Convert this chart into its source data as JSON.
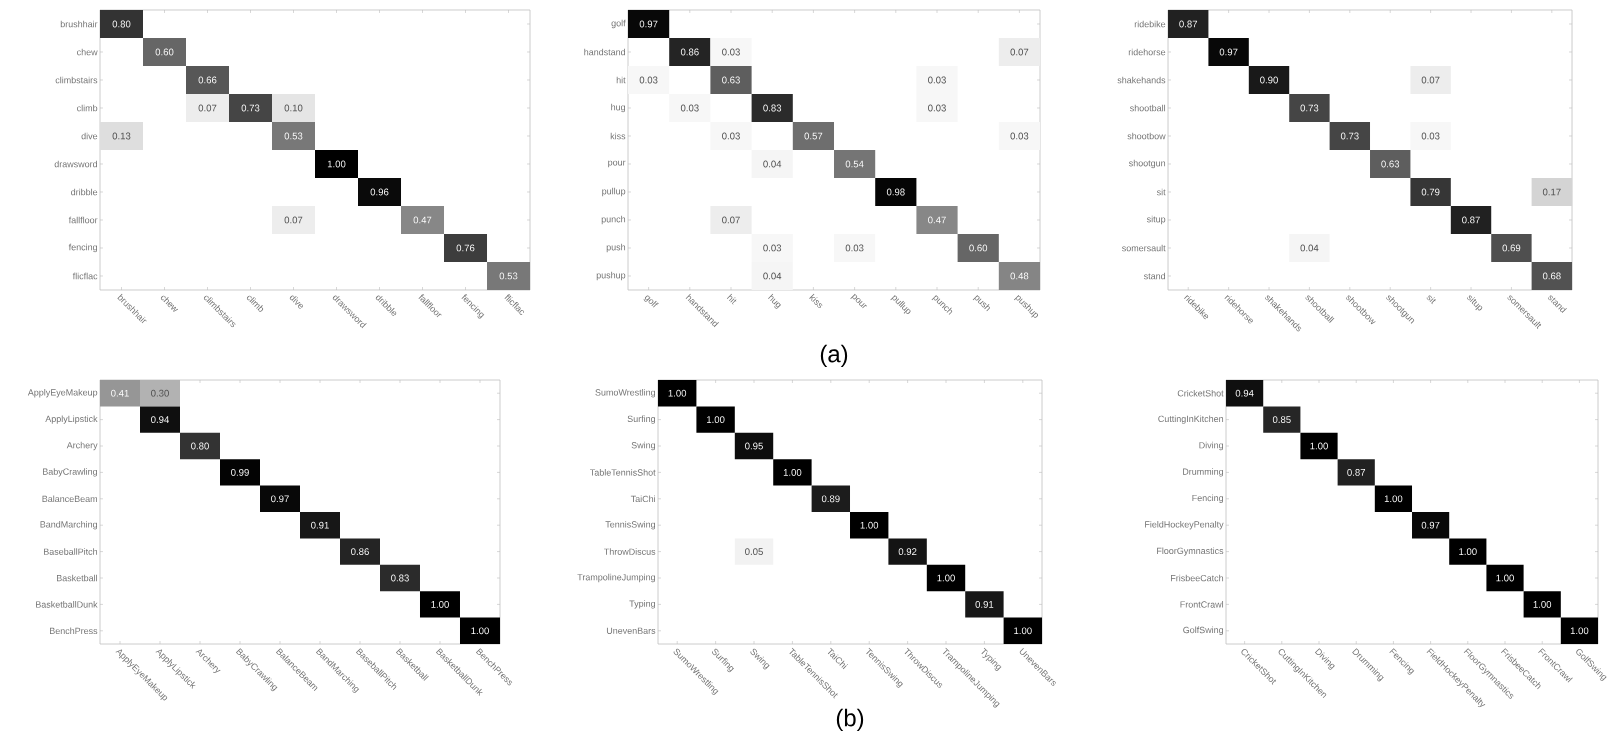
{
  "chart_data": [
    {
      "type": "heatmap",
      "categories": [
        "brushhair",
        "chew",
        "climbstairs",
        "climb",
        "dive",
        "drawsword",
        "dribble",
        "fallfloor",
        "fencing",
        "flicflac"
      ],
      "y_categories": [
        "brushhair",
        "chew",
        "climbstairs",
        "climb",
        "dive",
        "drawsword",
        "dribble",
        "fallfloor",
        "fencing",
        "flicflac"
      ],
      "cells": [
        [
          0.8,
          null,
          null,
          null,
          null,
          null,
          null,
          null,
          null,
          null
        ],
        [
          null,
          0.6,
          null,
          null,
          null,
          null,
          null,
          null,
          null,
          null
        ],
        [
          null,
          null,
          0.66,
          null,
          null,
          null,
          null,
          null,
          null,
          null
        ],
        [
          null,
          null,
          0.07,
          0.73,
          0.1,
          null,
          null,
          null,
          null,
          null
        ],
        [
          0.13,
          null,
          null,
          null,
          0.53,
          null,
          null,
          null,
          null,
          null
        ],
        [
          null,
          null,
          null,
          null,
          null,
          1.0,
          null,
          null,
          null,
          null
        ],
        [
          null,
          null,
          null,
          null,
          null,
          null,
          0.96,
          null,
          null,
          null
        ],
        [
          null,
          null,
          null,
          null,
          0.07,
          null,
          null,
          0.47,
          null,
          null
        ],
        [
          null,
          null,
          null,
          null,
          null,
          null,
          null,
          null,
          0.76,
          null
        ],
        [
          null,
          null,
          null,
          null,
          null,
          null,
          null,
          null,
          null,
          0.53
        ]
      ],
      "cell_labels": [
        [
          "0.80",
          null,
          null,
          null,
          null,
          null,
          null,
          null,
          null,
          null
        ],
        [
          null,
          "0.60",
          null,
          null,
          null,
          null,
          null,
          null,
          null,
          null
        ],
        [
          null,
          null,
          "0.66",
          null,
          null,
          null,
          null,
          null,
          null,
          null
        ],
        [
          null,
          null,
          "0.07",
          "0.73",
          "0.10",
          null,
          null,
          null,
          null,
          null
        ],
        [
          "0.13",
          null,
          null,
          null,
          "0.53",
          null,
          null,
          null,
          null,
          null
        ],
        [
          null,
          null,
          null,
          null,
          null,
          "1.00",
          null,
          null,
          null,
          null
        ],
        [
          null,
          null,
          null,
          null,
          null,
          null,
          "0.96",
          null,
          null,
          null
        ],
        [
          null,
          null,
          null,
          null,
          "0.07",
          null,
          null,
          "0.47",
          null,
          null
        ],
        [
          null,
          null,
          null,
          null,
          null,
          null,
          null,
          null,
          "0.76",
          null
        ],
        [
          null,
          null,
          null,
          null,
          null,
          null,
          null,
          null,
          null,
          "0.53"
        ]
      ]
    },
    {
      "type": "heatmap",
      "annotations": [
        "(a)"
      ],
      "categories": [
        "golf",
        "handstand",
        "hit",
        "hug",
        "kiss",
        "pour",
        "pullup",
        "punch",
        "push",
        "pushup"
      ],
      "y_categories": [
        "golf",
        "handstand",
        "hit",
        "hug",
        "kiss",
        "pour",
        "pullup",
        "punch",
        "push",
        "pushup"
      ],
      "cells": [
        [
          0.97,
          null,
          null,
          null,
          null,
          null,
          null,
          null,
          null,
          null
        ],
        [
          null,
          0.86,
          0.03,
          null,
          null,
          null,
          null,
          null,
          null,
          0.07
        ],
        [
          0.03,
          null,
          0.63,
          null,
          null,
          null,
          null,
          0.03,
          null,
          null
        ],
        [
          null,
          0.03,
          null,
          0.83,
          null,
          null,
          null,
          0.03,
          null,
          null
        ],
        [
          null,
          null,
          0.03,
          null,
          0.57,
          null,
          null,
          null,
          null,
          0.03
        ],
        [
          null,
          null,
          null,
          0.04,
          null,
          0.54,
          null,
          null,
          null,
          null
        ],
        [
          null,
          null,
          null,
          null,
          null,
          null,
          0.98,
          null,
          null,
          null
        ],
        [
          null,
          null,
          0.07,
          null,
          null,
          null,
          null,
          0.47,
          null,
          null
        ],
        [
          null,
          null,
          null,
          0.03,
          null,
          0.03,
          null,
          null,
          0.6,
          null
        ],
        [
          null,
          null,
          null,
          0.04,
          null,
          null,
          null,
          null,
          null,
          0.48
        ]
      ],
      "cell_labels": [
        [
          "0.97",
          null,
          null,
          null,
          null,
          null,
          null,
          null,
          null,
          null
        ],
        [
          null,
          "0.86",
          "0.03",
          null,
          null,
          null,
          null,
          null,
          null,
          "0.07"
        ],
        [
          "0.03",
          null,
          "0.63",
          null,
          null,
          null,
          null,
          "0.03",
          null,
          null
        ],
        [
          null,
          "0.03",
          null,
          "0.83",
          null,
          null,
          null,
          "0.03",
          null,
          null
        ],
        [
          null,
          null,
          "0.03",
          null,
          "0.57",
          null,
          null,
          null,
          null,
          "0.03"
        ],
        [
          null,
          null,
          null,
          "0.04",
          null,
          "0.54",
          null,
          null,
          null,
          null
        ],
        [
          null,
          null,
          null,
          null,
          null,
          null,
          "0.98",
          null,
          null,
          null
        ],
        [
          null,
          null,
          "0.07",
          null,
          null,
          null,
          null,
          "0.47",
          null,
          null
        ],
        [
          null,
          null,
          null,
          "0.03",
          null,
          "0.03",
          null,
          null,
          "0.60",
          null
        ],
        [
          null,
          null,
          null,
          "0.04",
          null,
          null,
          null,
          null,
          null,
          "0.48"
        ]
      ]
    },
    {
      "type": "heatmap",
      "categories": [
        "ridebike",
        "ridehorse",
        "shakehands",
        "shootball",
        "shootbow",
        "shootgun",
        "sit",
        "situp",
        "somersault",
        "stand"
      ],
      "y_categories": [
        "ridebike",
        "ridehorse",
        "shakehands",
        "shootball",
        "shootbow",
        "shootgun",
        "sit",
        "situp",
        "somersault",
        "stand"
      ],
      "cells": [
        [
          0.87,
          null,
          null,
          null,
          null,
          null,
          null,
          null,
          null,
          null
        ],
        [
          null,
          0.97,
          null,
          null,
          null,
          null,
          null,
          null,
          null,
          null
        ],
        [
          null,
          null,
          0.9,
          null,
          null,
          null,
          0.07,
          null,
          null,
          null
        ],
        [
          null,
          null,
          null,
          0.73,
          null,
          null,
          null,
          null,
          null,
          null
        ],
        [
          null,
          null,
          null,
          null,
          0.73,
          null,
          0.03,
          null,
          null,
          null
        ],
        [
          null,
          null,
          null,
          null,
          null,
          0.63,
          null,
          null,
          null,
          null
        ],
        [
          null,
          null,
          null,
          null,
          null,
          null,
          0.79,
          null,
          null,
          0.17
        ],
        [
          null,
          null,
          null,
          null,
          null,
          null,
          null,
          0.87,
          null,
          null
        ],
        [
          null,
          null,
          null,
          0.04,
          null,
          null,
          null,
          null,
          0.69,
          null
        ],
        [
          null,
          null,
          null,
          null,
          null,
          null,
          null,
          null,
          null,
          0.68
        ]
      ],
      "cell_labels": [
        [
          "0.87",
          null,
          null,
          null,
          null,
          null,
          null,
          null,
          null,
          null
        ],
        [
          null,
          "0.97",
          null,
          null,
          null,
          null,
          null,
          null,
          null,
          null
        ],
        [
          null,
          null,
          "0.90",
          null,
          null,
          null,
          "0.07",
          null,
          null,
          null
        ],
        [
          null,
          null,
          null,
          "0.73",
          null,
          null,
          null,
          null,
          null,
          null
        ],
        [
          null,
          null,
          null,
          null,
          "0.73",
          null,
          "0.03",
          null,
          null,
          null
        ],
        [
          null,
          null,
          null,
          null,
          null,
          "0.63",
          null,
          null,
          null,
          null
        ],
        [
          null,
          null,
          null,
          null,
          null,
          null,
          "0.79",
          null,
          null,
          "0.17"
        ],
        [
          null,
          null,
          null,
          null,
          null,
          null,
          null,
          "0.87",
          null,
          null
        ],
        [
          null,
          null,
          null,
          "0.04",
          null,
          null,
          null,
          null,
          "0.69",
          null
        ],
        [
          null,
          null,
          null,
          null,
          null,
          null,
          null,
          null,
          null,
          "0.68"
        ]
      ]
    },
    {
      "type": "heatmap",
      "categories": [
        "ApplyEyeMakeup",
        "ApplyLipstick",
        "Archery",
        "BabyCrawling",
        "BalanceBeam",
        "BandMarching",
        "BaseballPitch",
        "Basketball",
        "BasketballDunk",
        "BenchPress"
      ],
      "y_categories": [
        "ApplyEyeMakeup",
        "ApplyLipstick",
        "Archery",
        "BabyCrawling",
        "BalanceBeam",
        "BandMarching",
        "BaseballPitch",
        "Basketball",
        "BasketballDunk",
        "BenchPress"
      ],
      "cells": [
        [
          0.41,
          0.3,
          null,
          null,
          null,
          null,
          null,
          null,
          null,
          null
        ],
        [
          null,
          0.94,
          null,
          null,
          null,
          null,
          null,
          null,
          null,
          null
        ],
        [
          null,
          null,
          0.8,
          null,
          null,
          null,
          null,
          null,
          null,
          null
        ],
        [
          null,
          null,
          null,
          0.99,
          null,
          null,
          null,
          null,
          null,
          null
        ],
        [
          null,
          null,
          null,
          null,
          0.97,
          null,
          null,
          null,
          null,
          null
        ],
        [
          null,
          null,
          null,
          null,
          null,
          0.91,
          null,
          null,
          null,
          null
        ],
        [
          null,
          null,
          null,
          null,
          null,
          null,
          0.86,
          null,
          null,
          null
        ],
        [
          null,
          null,
          null,
          null,
          null,
          null,
          null,
          0.83,
          null,
          null
        ],
        [
          null,
          null,
          null,
          null,
          null,
          null,
          null,
          null,
          1.0,
          null
        ],
        [
          null,
          null,
          null,
          null,
          null,
          null,
          null,
          null,
          null,
          1.0
        ]
      ],
      "cell_labels": [
        [
          "0.41",
          "0.30",
          null,
          null,
          null,
          null,
          null,
          null,
          null,
          null
        ],
        [
          null,
          "0.94",
          null,
          null,
          null,
          null,
          null,
          null,
          null,
          null
        ],
        [
          null,
          null,
          "0.80",
          null,
          null,
          null,
          null,
          null,
          null,
          null
        ],
        [
          null,
          null,
          null,
          "0.99",
          null,
          null,
          null,
          null,
          null,
          null
        ],
        [
          null,
          null,
          null,
          null,
          "0.97",
          null,
          null,
          null,
          null,
          null
        ],
        [
          null,
          null,
          null,
          null,
          null,
          "0.91",
          null,
          null,
          null,
          null
        ],
        [
          null,
          null,
          null,
          null,
          null,
          null,
          "0.86",
          null,
          null,
          null
        ],
        [
          null,
          null,
          null,
          null,
          null,
          null,
          null,
          "0.83",
          null,
          null
        ],
        [
          null,
          null,
          null,
          null,
          null,
          null,
          null,
          null,
          "1.00",
          null
        ],
        [
          null,
          null,
          null,
          null,
          null,
          null,
          null,
          null,
          null,
          "1.00"
        ]
      ]
    },
    {
      "type": "heatmap",
      "annotations": [
        "(b)"
      ],
      "categories": [
        "SumoWrestling",
        "Surfing",
        "Swing",
        "TableTennisShot",
        "TaiChi",
        "TennisSwing",
        "ThrowDiscus",
        "TrampolineJumping",
        "Typing",
        "UnevenBars"
      ],
      "y_categories": [
        "SumoWrestling",
        "Surfing",
        "Swing",
        "TableTennisShot",
        "TaiChi",
        "TennisSwing",
        "ThrowDiscus",
        "TrampolineJumping",
        "Typing",
        "UnevenBars"
      ],
      "cells": [
        [
          1.0,
          null,
          null,
          null,
          null,
          null,
          null,
          null,
          null,
          null
        ],
        [
          null,
          1.0,
          null,
          null,
          null,
          null,
          null,
          null,
          null,
          null
        ],
        [
          null,
          null,
          0.95,
          null,
          null,
          null,
          null,
          null,
          null,
          null
        ],
        [
          null,
          null,
          null,
          1.0,
          null,
          null,
          null,
          null,
          null,
          null
        ],
        [
          null,
          null,
          null,
          null,
          0.89,
          null,
          null,
          null,
          null,
          null
        ],
        [
          null,
          null,
          null,
          null,
          null,
          1.0,
          null,
          null,
          null,
          null
        ],
        [
          null,
          null,
          0.05,
          null,
          null,
          null,
          0.92,
          null,
          null,
          null
        ],
        [
          null,
          null,
          null,
          null,
          null,
          null,
          null,
          1.0,
          null,
          null
        ],
        [
          null,
          null,
          null,
          null,
          null,
          null,
          null,
          null,
          0.91,
          null
        ],
        [
          null,
          null,
          null,
          null,
          null,
          null,
          null,
          null,
          null,
          1.0
        ]
      ],
      "cell_labels": [
        [
          "1.00",
          null,
          null,
          null,
          null,
          null,
          null,
          null,
          null,
          null
        ],
        [
          null,
          "1.00",
          null,
          null,
          null,
          null,
          null,
          null,
          null,
          null
        ],
        [
          null,
          null,
          "0.95",
          null,
          null,
          null,
          null,
          null,
          null,
          null
        ],
        [
          null,
          null,
          null,
          "1.00",
          null,
          null,
          null,
          null,
          null,
          null
        ],
        [
          null,
          null,
          null,
          null,
          "0.89",
          null,
          null,
          null,
          null,
          null
        ],
        [
          null,
          null,
          null,
          null,
          null,
          "1.00",
          null,
          null,
          null,
          null
        ],
        [
          null,
          null,
          "0.05",
          null,
          null,
          null,
          "0.92",
          null,
          null,
          null
        ],
        [
          null,
          null,
          null,
          null,
          null,
          null,
          null,
          "1.00",
          null,
          null
        ],
        [
          null,
          null,
          null,
          null,
          null,
          null,
          null,
          null,
          "0.91",
          null
        ],
        [
          null,
          null,
          null,
          null,
          null,
          null,
          null,
          null,
          null,
          "1.00"
        ]
      ]
    },
    {
      "type": "heatmap",
      "categories": [
        "CricketShot",
        "CuttingInKitchen",
        "Diving",
        "Drumming",
        "Fencing",
        "FieldHockeyPenalty",
        "FloorGymnastics",
        "FrisbeeCatch",
        "FrontCrawl",
        "GolfSwing"
      ],
      "y_categories": [
        "CricketShot",
        "CuttingInKitchen",
        "Diving",
        "Drumming",
        "Fencing",
        "FieldHockeyPenalty",
        "FloorGymnastics",
        "FrisbeeCatch",
        "FrontCrawl",
        "GolfSwing"
      ],
      "cells": [
        [
          0.94,
          null,
          null,
          null,
          null,
          null,
          null,
          null,
          null,
          null
        ],
        [
          null,
          0.85,
          null,
          null,
          null,
          null,
          null,
          null,
          null,
          null
        ],
        [
          null,
          null,
          1.0,
          null,
          null,
          null,
          null,
          null,
          null,
          null
        ],
        [
          null,
          null,
          null,
          0.87,
          null,
          null,
          null,
          null,
          null,
          null
        ],
        [
          null,
          null,
          null,
          null,
          1.0,
          null,
          null,
          null,
          null,
          null
        ],
        [
          null,
          null,
          null,
          null,
          null,
          0.97,
          null,
          null,
          null,
          null
        ],
        [
          null,
          null,
          null,
          null,
          null,
          null,
          1.0,
          null,
          null,
          null
        ],
        [
          null,
          null,
          null,
          null,
          null,
          null,
          null,
          1.0,
          null,
          null
        ],
        [
          null,
          null,
          null,
          null,
          null,
          null,
          null,
          null,
          1.0,
          null
        ],
        [
          null,
          null,
          null,
          null,
          null,
          null,
          null,
          null,
          null,
          1.0
        ]
      ],
      "cell_labels": [
        [
          "0.94",
          null,
          null,
          null,
          null,
          null,
          null,
          null,
          null,
          null
        ],
        [
          null,
          "0.85",
          null,
          null,
          null,
          null,
          null,
          null,
          null,
          null
        ],
        [
          null,
          null,
          "1.00",
          null,
          null,
          null,
          null,
          null,
          null,
          null
        ],
        [
          null,
          null,
          null,
          "0.87",
          null,
          null,
          null,
          null,
          null,
          null
        ],
        [
          null,
          null,
          null,
          null,
          "1.00",
          null,
          null,
          null,
          null,
          null
        ],
        [
          null,
          null,
          null,
          null,
          null,
          "0.97",
          null,
          null,
          null,
          null
        ],
        [
          null,
          null,
          null,
          null,
          null,
          null,
          "1.00",
          null,
          null,
          null
        ],
        [
          null,
          null,
          null,
          null,
          null,
          null,
          null,
          "1.00",
          null,
          null
        ],
        [
          null,
          null,
          null,
          null,
          null,
          null,
          null,
          null,
          "1.00",
          null
        ],
        [
          null,
          null,
          null,
          null,
          null,
          null,
          null,
          null,
          null,
          "1.00"
        ]
      ]
    }
  ]
}
